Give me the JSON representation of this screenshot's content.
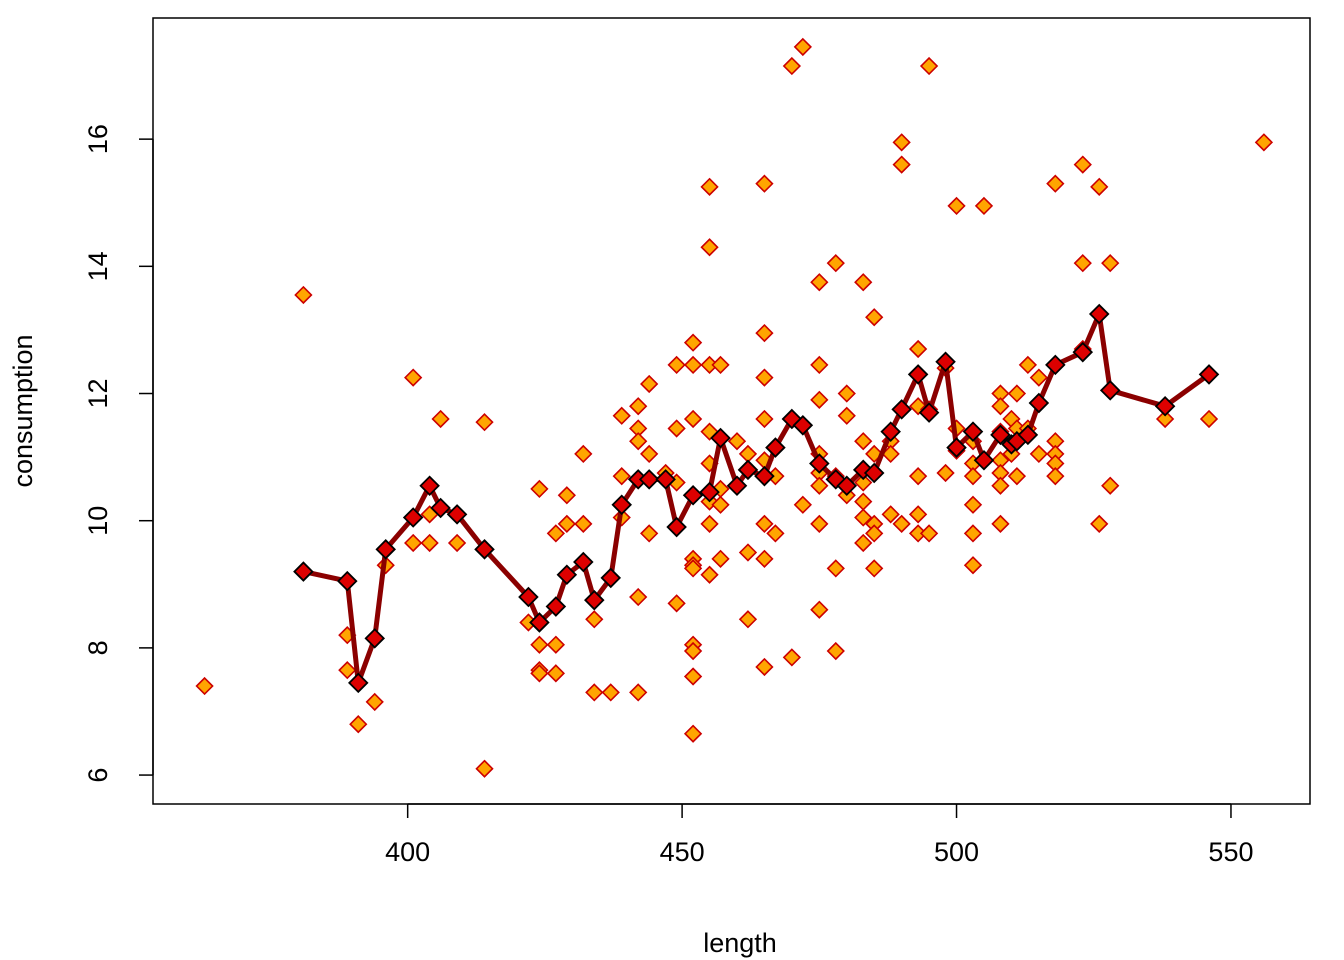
{
  "chart_data": {
    "type": "scatter",
    "xlabel": "length",
    "ylabel": "consumption",
    "xlim": [
      353.6,
      564.4
    ],
    "ylim": [
      5.545,
      17.905
    ],
    "x_ticks": [
      400,
      450,
      500,
      550
    ],
    "y_ticks": [
      6,
      8,
      10,
      12,
      14,
      16
    ],
    "x_tick_labels": [
      "400",
      "450",
      "500",
      "550"
    ],
    "y_tick_labels": [
      "6",
      "8",
      "10",
      "12",
      "14",
      "16"
    ],
    "grid": false,
    "series": [
      {
        "kind": "points",
        "color": "#FFA500",
        "edge_color": "#CC0000",
        "marker": "diamond",
        "points": [
          [
            363,
            7.4
          ],
          [
            381,
            13.55
          ],
          [
            389,
            8.2
          ],
          [
            389,
            7.65
          ],
          [
            391,
            6.8
          ],
          [
            394,
            7.15
          ],
          [
            396,
            9.3
          ],
          [
            401,
            12.25
          ],
          [
            401,
            9.65
          ],
          [
            404,
            10.1
          ],
          [
            404,
            9.65
          ],
          [
            406,
            11.6
          ],
          [
            409,
            9.65
          ],
          [
            414,
            11.55
          ],
          [
            414,
            6.1
          ],
          [
            422,
            8.4
          ],
          [
            424,
            10.5
          ],
          [
            424,
            8.05
          ],
          [
            424,
            7.65
          ],
          [
            424,
            7.6
          ],
          [
            427,
            9.8
          ],
          [
            427,
            8.05
          ],
          [
            427,
            7.6
          ],
          [
            429,
            10.4
          ],
          [
            429,
            9.95
          ],
          [
            432,
            11.05
          ],
          [
            432,
            9.95
          ],
          [
            434,
            8.45
          ],
          [
            434,
            7.3
          ],
          [
            437,
            7.3
          ],
          [
            439,
            11.65
          ],
          [
            439,
            10.7
          ],
          [
            439,
            10.05
          ],
          [
            442,
            11.8
          ],
          [
            442,
            11.45
          ],
          [
            442,
            11.25
          ],
          [
            442,
            8.8
          ],
          [
            442,
            7.3
          ],
          [
            444,
            12.15
          ],
          [
            444,
            11.05
          ],
          [
            444,
            9.8
          ],
          [
            447,
            10.75
          ],
          [
            449,
            12.45
          ],
          [
            449,
            11.45
          ],
          [
            449,
            10.6
          ],
          [
            449,
            9.9
          ],
          [
            449,
            8.7
          ],
          [
            452,
            12.8
          ],
          [
            452,
            12.45
          ],
          [
            452,
            11.6
          ],
          [
            452,
            9.4
          ],
          [
            452,
            9.3
          ],
          [
            452,
            9.25
          ],
          [
            452,
            8.05
          ],
          [
            452,
            7.95
          ],
          [
            452,
            7.55
          ],
          [
            452,
            6.65
          ],
          [
            455,
            15.25
          ],
          [
            455,
            14.3
          ],
          [
            455,
            12.45
          ],
          [
            455,
            11.4
          ],
          [
            455,
            10.9
          ],
          [
            455,
            10.3
          ],
          [
            455,
            9.95
          ],
          [
            455,
            9.15
          ],
          [
            457,
            12.45
          ],
          [
            457,
            10.5
          ],
          [
            457,
            10.25
          ],
          [
            457,
            9.4
          ],
          [
            460,
            11.25
          ],
          [
            462,
            11.05
          ],
          [
            462,
            9.5
          ],
          [
            462,
            8.45
          ],
          [
            465,
            15.3
          ],
          [
            465,
            12.95
          ],
          [
            465,
            12.25
          ],
          [
            465,
            11.6
          ],
          [
            465,
            10.95
          ],
          [
            465,
            9.95
          ],
          [
            465,
            9.4
          ],
          [
            465,
            7.7
          ],
          [
            467,
            10.7
          ],
          [
            467,
            9.8
          ],
          [
            470,
            17.15
          ],
          [
            470,
            11.6
          ],
          [
            470,
            7.85
          ],
          [
            472,
            17.45
          ],
          [
            472,
            11.5
          ],
          [
            472,
            10.25
          ],
          [
            475,
            13.75
          ],
          [
            475,
            12.45
          ],
          [
            475,
            11.9
          ],
          [
            475,
            11.05
          ],
          [
            475,
            10.75
          ],
          [
            475,
            10.55
          ],
          [
            475,
            9.95
          ],
          [
            475,
            8.6
          ],
          [
            478,
            14.05
          ],
          [
            478,
            10.7
          ],
          [
            478,
            9.25
          ],
          [
            478,
            7.95
          ],
          [
            480,
            12.0
          ],
          [
            480,
            11.65
          ],
          [
            480,
            10.4
          ],
          [
            483,
            13.75
          ],
          [
            483,
            11.25
          ],
          [
            483,
            10.6
          ],
          [
            483,
            10.3
          ],
          [
            483,
            10.05
          ],
          [
            483,
            9.65
          ],
          [
            485,
            13.2
          ],
          [
            485,
            11.05
          ],
          [
            485,
            9.95
          ],
          [
            485,
            9.8
          ],
          [
            485,
            9.25
          ],
          [
            488,
            11.25
          ],
          [
            488,
            11.05
          ],
          [
            488,
            10.1
          ],
          [
            490,
            15.95
          ],
          [
            490,
            15.6
          ],
          [
            490,
            9.95
          ],
          [
            493,
            12.7
          ],
          [
            493,
            11.8
          ],
          [
            493,
            10.7
          ],
          [
            493,
            10.1
          ],
          [
            493,
            9.8
          ],
          [
            495,
            17.15
          ],
          [
            495,
            11.75
          ],
          [
            495,
            9.8
          ],
          [
            498,
            12.4
          ],
          [
            498,
            10.75
          ],
          [
            500,
            14.95
          ],
          [
            500,
            11.45
          ],
          [
            500,
            11.1
          ],
          [
            503,
            11.25
          ],
          [
            503,
            10.9
          ],
          [
            503,
            10.7
          ],
          [
            503,
            10.25
          ],
          [
            503,
            9.8
          ],
          [
            503,
            9.3
          ],
          [
            505,
            14.95
          ],
          [
            505,
            10.95
          ],
          [
            508,
            12.0
          ],
          [
            508,
            11.8
          ],
          [
            508,
            11.4
          ],
          [
            508,
            10.95
          ],
          [
            508,
            10.75
          ],
          [
            508,
            10.55
          ],
          [
            508,
            9.95
          ],
          [
            510,
            11.6
          ],
          [
            510,
            11.05
          ],
          [
            511,
            12.0
          ],
          [
            511,
            11.45
          ],
          [
            511,
            10.7
          ],
          [
            513,
            12.45
          ],
          [
            513,
            11.45
          ],
          [
            515,
            12.25
          ],
          [
            515,
            11.05
          ],
          [
            518,
            15.3
          ],
          [
            518,
            12.45
          ],
          [
            518,
            11.25
          ],
          [
            518,
            11.05
          ],
          [
            518,
            10.9
          ],
          [
            518,
            10.7
          ],
          [
            523,
            15.6
          ],
          [
            523,
            14.05
          ],
          [
            523,
            12.7
          ],
          [
            526,
            15.25
          ],
          [
            526,
            9.95
          ],
          [
            528,
            14.05
          ],
          [
            528,
            10.55
          ],
          [
            538,
            11.6
          ],
          [
            546,
            11.6
          ],
          [
            556,
            15.95
          ]
        ]
      },
      {
        "kind": "mean-line",
        "color": "#8B0000",
        "marker_fill": "#DD0000",
        "marker_edge": "#000000",
        "marker": "diamond",
        "points": [
          [
            381,
            9.2
          ],
          [
            389,
            9.05
          ],
          [
            391,
            7.45
          ],
          [
            394,
            8.15
          ],
          [
            396,
            9.55
          ],
          [
            401,
            10.05
          ],
          [
            404,
            10.55
          ],
          [
            406,
            10.2
          ],
          [
            409,
            10.1
          ],
          [
            414,
            9.55
          ],
          [
            422,
            8.8
          ],
          [
            424,
            8.4
          ],
          [
            427,
            8.65
          ],
          [
            429,
            9.15
          ],
          [
            432,
            9.35
          ],
          [
            434,
            8.75
          ],
          [
            437,
            9.1
          ],
          [
            439,
            10.25
          ],
          [
            442,
            10.65
          ],
          [
            444,
            10.65
          ],
          [
            447,
            10.65
          ],
          [
            449,
            9.9
          ],
          [
            452,
            10.4
          ],
          [
            455,
            10.45
          ],
          [
            457,
            11.3
          ],
          [
            460,
            10.55
          ],
          [
            462,
            10.8
          ],
          [
            465,
            10.7
          ],
          [
            467,
            11.15
          ],
          [
            470,
            11.6
          ],
          [
            472,
            11.5
          ],
          [
            475,
            10.9
          ],
          [
            478,
            10.65
          ],
          [
            480,
            10.55
          ],
          [
            483,
            10.8
          ],
          [
            485,
            10.75
          ],
          [
            488,
            11.4
          ],
          [
            490,
            11.75
          ],
          [
            493,
            12.3
          ],
          [
            495,
            11.7
          ],
          [
            498,
            12.5
          ],
          [
            500,
            11.15
          ],
          [
            503,
            11.4
          ],
          [
            505,
            10.95
          ],
          [
            508,
            11.35
          ],
          [
            510,
            11.2
          ],
          [
            511,
            11.25
          ],
          [
            513,
            11.35
          ],
          [
            515,
            11.85
          ],
          [
            518,
            12.45
          ],
          [
            523,
            12.65
          ],
          [
            526,
            13.25
          ],
          [
            528,
            12.05
          ],
          [
            538,
            11.8
          ],
          [
            546,
            12.3
          ]
        ]
      }
    ]
  }
}
